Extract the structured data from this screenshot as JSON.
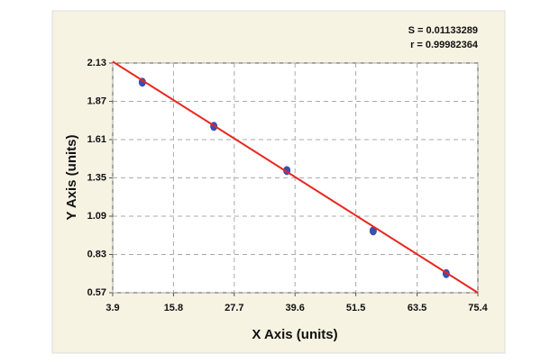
{
  "chart_data": {
    "type": "scatter",
    "x_label": "X Axis (units)",
    "y_label": "Y Axis (units)",
    "annotations": [
      "S = 0.01133289",
      "r = 0.99982364"
    ],
    "series": [
      {
        "x": [
          9.7,
          23.7,
          38.0,
          54.9,
          69.2
        ],
        "values": [
          2.0,
          1.7,
          1.4,
          0.99,
          0.7
        ],
        "color": "#3a4fb0"
      }
    ],
    "fit_line": {
      "x": [
        3.9,
        75.4
      ],
      "values": [
        2.14,
        0.57
      ],
      "color": "#e8261e"
    },
    "xlim": [
      3.9,
      75.4
    ],
    "xticks": [
      3.9,
      15.8,
      27.7,
      39.6,
      51.5,
      63.5,
      75.4
    ],
    "ylim": [
      0.57,
      2.13
    ],
    "yticks": [
      0.57,
      0.83,
      1.09,
      1.35,
      1.61,
      1.87,
      2.13
    ],
    "grid": true
  }
}
